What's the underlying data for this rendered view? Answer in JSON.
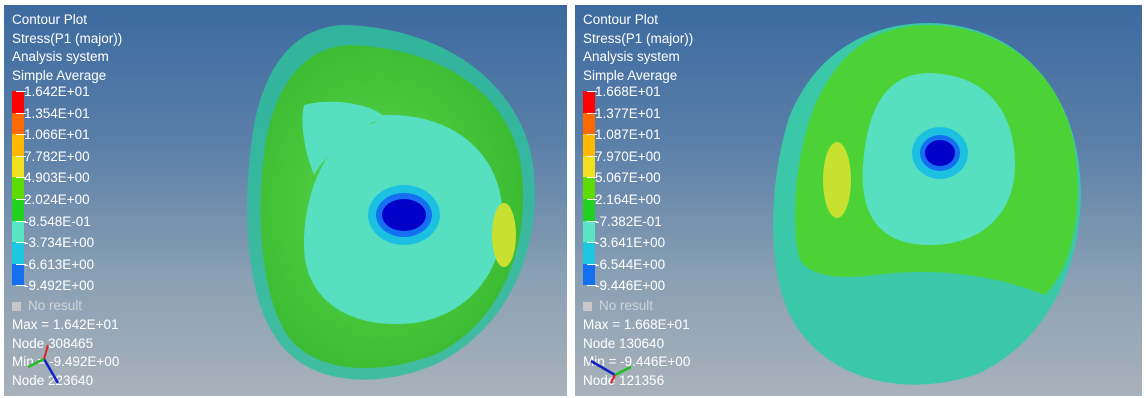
{
  "colors": {
    "legend_bands": [
      "#ff0000",
      "#ff6a00",
      "#ffb800",
      "#f0e020",
      "#5cdc00",
      "#22d020",
      "#5ae6c4",
      "#1cc8e0",
      "#1470f0",
      "#0000c8"
    ]
  },
  "left": {
    "title": "Contour Plot",
    "result": "Stress(P1 (major))",
    "system": "Analysis system",
    "averaging": "Simple Average",
    "legend": [
      "1.642E+01",
      "1.354E+01",
      "1.066E+01",
      "7.782E+00",
      "4.903E+00",
      "2.024E+00",
      "-8.548E-01",
      "-3.734E+00",
      "-6.613E+00",
      "-9.492E+00"
    ],
    "no_result": "No result",
    "max_text": "Max = 1.642E+01",
    "max_node": "Node 308465",
    "min_text": "Min = -9.492E+00",
    "min_node": "Node 223640",
    "triad_icon": "coordinate-triad-icon"
  },
  "right": {
    "title": "Contour Plot",
    "result": "Stress(P1 (major))",
    "system": "Analysis system",
    "averaging": "Simple Average",
    "legend": [
      "1.668E+01",
      "1.377E+01",
      "1.087E+01",
      "7.970E+00",
      "5.067E+00",
      "2.164E+00",
      "-7.382E-01",
      "-3.641E+00",
      "-6.544E+00",
      "-9.446E+00"
    ],
    "no_result": "No result",
    "max_text": "Max = 1.668E+01",
    "max_node": "Node 130640",
    "min_text": "Min = -9.446E+00",
    "min_node": "Node 121356",
    "triad_icon": "coordinate-triad-icon"
  }
}
